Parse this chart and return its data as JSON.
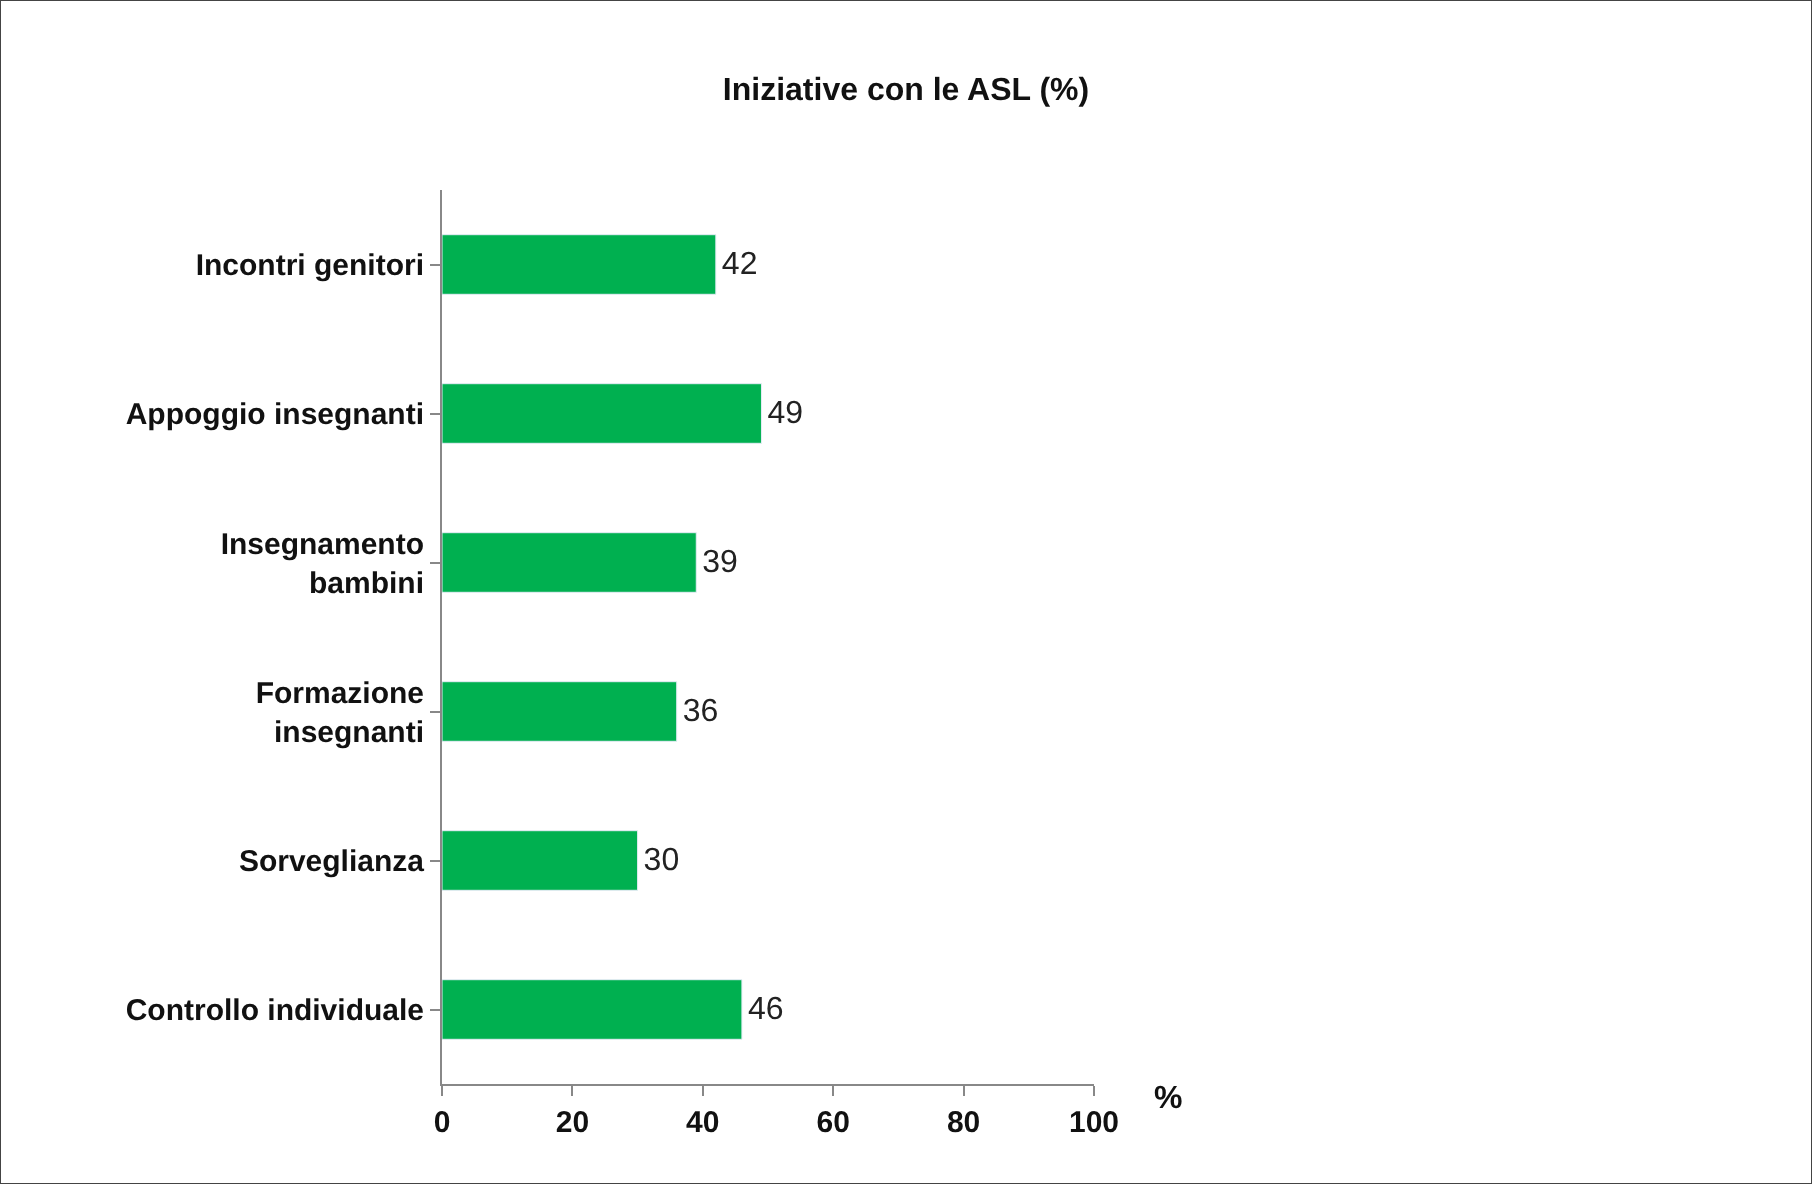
{
  "chart_data": {
    "type": "bar",
    "orientation": "horizontal",
    "title": "Iniziative con le ASL (%)",
    "xlabel": "%",
    "categories": [
      "Incontri genitori",
      "Appoggio insegnanti",
      "Insegnamento\nbambini",
      "Formazione\ninsegnanti",
      "Sorveglianza",
      "Controllo individuale"
    ],
    "values": [
      42,
      49,
      39,
      36,
      30,
      46
    ],
    "color": "#00b050",
    "xlim": [
      0,
      100
    ],
    "xticks": [
      0,
      20,
      40,
      60,
      80,
      100
    ],
    "data_labels": true
  }
}
